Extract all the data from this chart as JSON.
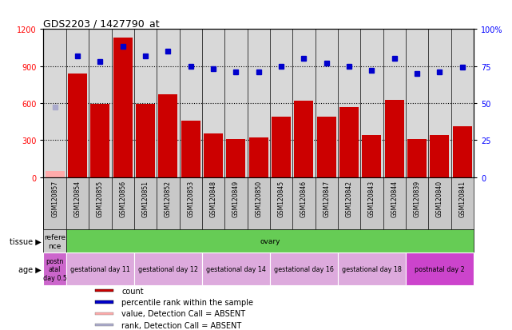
{
  "title": "GDS2203 / 1427790_at",
  "samples": [
    "GSM120857",
    "GSM120854",
    "GSM120855",
    "GSM120856",
    "GSM120851",
    "GSM120852",
    "GSM120853",
    "GSM120848",
    "GSM120849",
    "GSM120850",
    "GSM120845",
    "GSM120846",
    "GSM120847",
    "GSM120842",
    "GSM120843",
    "GSM120844",
    "GSM120839",
    "GSM120840",
    "GSM120841"
  ],
  "count_values": [
    50,
    840,
    595,
    1130,
    590,
    670,
    460,
    350,
    310,
    320,
    490,
    620,
    490,
    570,
    340,
    625,
    305,
    340,
    410
  ],
  "count_absent": [
    true,
    false,
    false,
    false,
    false,
    false,
    false,
    false,
    false,
    false,
    false,
    false,
    false,
    false,
    false,
    false,
    false,
    false,
    false
  ],
  "percentile_values": [
    47,
    82,
    78,
    88,
    82,
    85,
    75,
    73,
    71,
    71,
    75,
    80,
    77,
    75,
    72,
    80,
    70,
    71,
    74
  ],
  "percentile_absent": [
    true,
    false,
    false,
    false,
    false,
    false,
    false,
    false,
    false,
    false,
    false,
    false,
    false,
    false,
    false,
    false,
    false,
    false,
    false
  ],
  "ylim_left": [
    0,
    1200
  ],
  "ylim_right": [
    0,
    100
  ],
  "yticks_left": [
    0,
    300,
    600,
    900,
    1200
  ],
  "ytick_labels_right": [
    "0",
    "25",
    "50",
    "75",
    "100%"
  ],
  "bar_color": "#cc0000",
  "bar_color_absent": "#ffaaaa",
  "dot_color": "#0000cc",
  "dot_color_absent": "#aaaacc",
  "tissue_row": [
    {
      "label": "refere\nnce",
      "color": "#cccccc",
      "span": 1
    },
    {
      "label": "ovary",
      "color": "#66cc55",
      "span": 18
    }
  ],
  "age_row": [
    {
      "label": "postn\natal\nday 0.5",
      "color": "#cc66cc",
      "span": 1
    },
    {
      "label": "gestational day 11",
      "color": "#ddaadd",
      "span": 3
    },
    {
      "label": "gestational day 12",
      "color": "#ddaadd",
      "span": 3
    },
    {
      "label": "gestational day 14",
      "color": "#ddaadd",
      "span": 3
    },
    {
      "label": "gestational day 16",
      "color": "#ddaadd",
      "span": 3
    },
    {
      "label": "gestational day 18",
      "color": "#ddaadd",
      "span": 3
    },
    {
      "label": "postnatal day 2",
      "color": "#cc44cc",
      "span": 3
    }
  ],
  "legend_items": [
    {
      "color": "#cc0000",
      "label": "count"
    },
    {
      "color": "#0000cc",
      "label": "percentile rank within the sample"
    },
    {
      "color": "#ffaaaa",
      "label": "value, Detection Call = ABSENT"
    },
    {
      "color": "#aaaacc",
      "label": "rank, Detection Call = ABSENT"
    }
  ],
  "bg_color": "#d8d8d8",
  "plot_bg": "#d8d8d8",
  "xticklabel_bg": "#c8c8c8"
}
